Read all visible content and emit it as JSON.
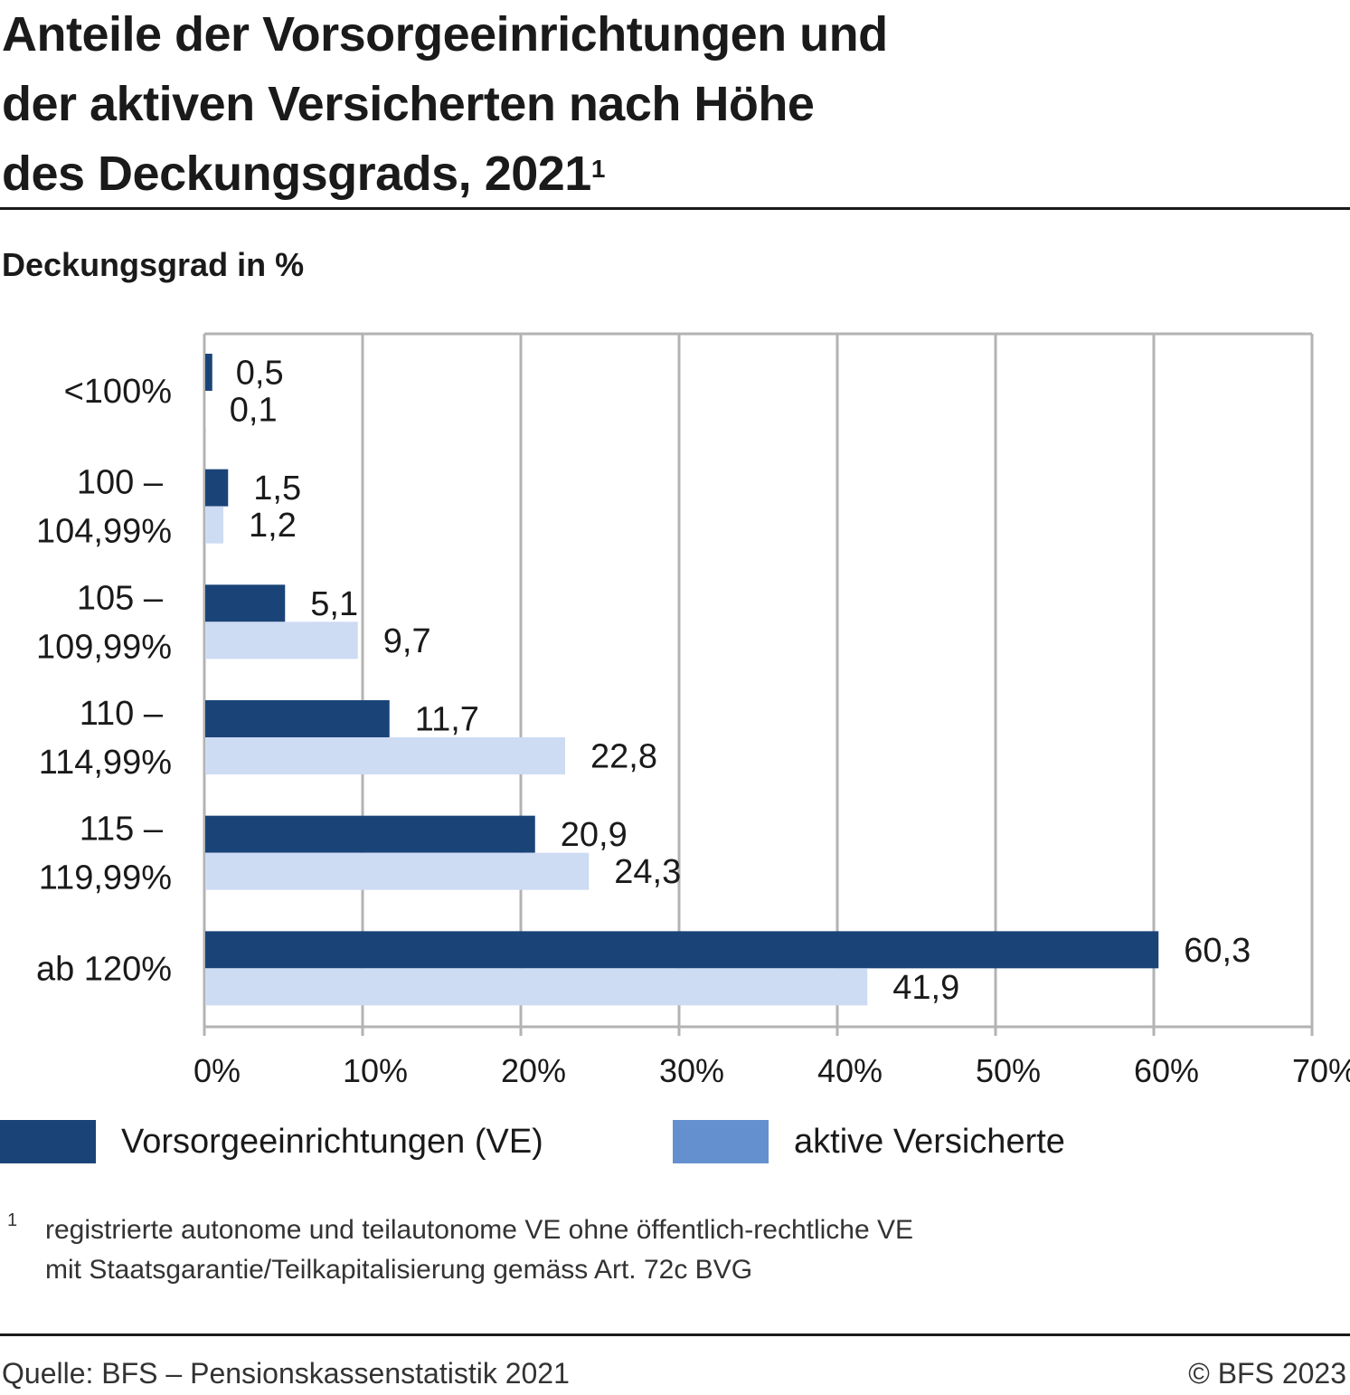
{
  "title_lines": [
    "Anteile der Vorsorgeeinrichtungen und",
    "der aktiven Versicherten nach Höhe",
    "des Deckungsgrads, 2021"
  ],
  "title_footnote_mark": "1",
  "subtitle": "Deckungsgrad in %",
  "chart_data": {
    "type": "bar",
    "orientation": "horizontal",
    "categories": [
      [
        "<100%"
      ],
      [
        "100 –",
        "104,99%"
      ],
      [
        "105 –",
        "109,99%"
      ],
      [
        "110 –",
        "114,99%"
      ],
      [
        "115 –",
        "119,99%"
      ],
      [
        "ab 120%"
      ]
    ],
    "series": [
      {
        "name": "Vorsorgeeinrichtungen (VE)",
        "values": [
          0.5,
          1.5,
          5.1,
          11.7,
          20.9,
          60.3
        ],
        "labels": [
          "0,5",
          "1,5",
          "5,1",
          "11,7",
          "20,9",
          "60,3"
        ],
        "color": "#1a4478",
        "legend_color": "#1a4478"
      },
      {
        "name": "aktive Versicherte",
        "values": [
          0.1,
          1.2,
          9.7,
          22.8,
          24.3,
          41.9
        ],
        "labels": [
          "0,1",
          "1,2",
          "9,7",
          "22,8",
          "24,3",
          "41,9"
        ],
        "color": "#cddbf3",
        "legend_color": "#6490cf"
      }
    ],
    "xlim": [
      0,
      70
    ],
    "xticks": [
      0,
      10,
      20,
      30,
      40,
      50,
      60,
      70
    ],
    "xtick_labels": [
      "0%",
      "10%",
      "20%",
      "30%",
      "40%",
      "50%",
      "60%",
      "70%"
    ],
    "grid": true,
    "legend_position": "bottom"
  },
  "footnote": {
    "mark": "1",
    "lines": [
      "registrierte autonome und teilautonome VE ohne öffentlich-rechtliche VE",
      "mit Staatsgarantie/Teilkapitalisierung gemäss Art. 72c BVG"
    ]
  },
  "source": "Quelle: BFS – Pensionskassenstatistik 2021",
  "copyright": "© BFS 2023"
}
